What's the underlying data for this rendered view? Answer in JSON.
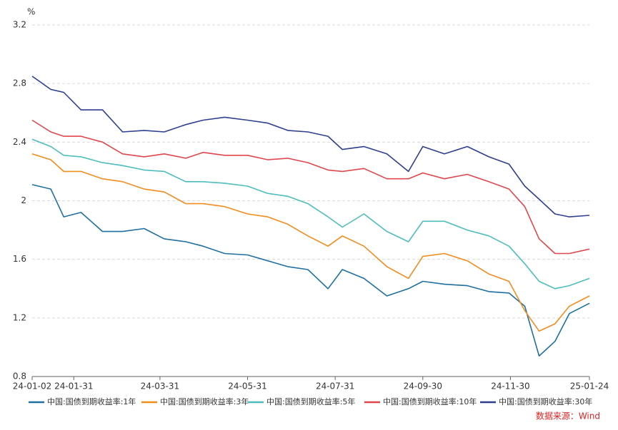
{
  "chart_data": {
    "type": "line",
    "y_unit": "%",
    "source": "数据来源：Wind",
    "x": [
      "24-01-02",
      "24-01-15",
      "24-01-24",
      "24-02-05",
      "24-02-20",
      "24-03-05",
      "24-03-20",
      "24-04-03",
      "24-04-18",
      "24-04-30",
      "24-05-15",
      "24-05-31",
      "24-06-14",
      "24-06-28",
      "24-07-12",
      "24-07-26",
      "24-08-05",
      "24-08-20",
      "24-09-05",
      "24-09-20",
      "24-09-30",
      "24-10-15",
      "24-10-31",
      "24-11-15",
      "24-11-29",
      "24-12-10",
      "24-12-20",
      "24-12-31",
      "25-01-10",
      "25-01-24"
    ],
    "series": [
      {
        "name": "中国:国债到期收益率:1年",
        "color": "#1f6fa0",
        "values": [
          2.11,
          2.08,
          1.89,
          1.92,
          1.79,
          1.79,
          1.81,
          1.74,
          1.72,
          1.69,
          1.64,
          1.63,
          1.59,
          1.55,
          1.53,
          1.4,
          1.53,
          1.47,
          1.35,
          1.4,
          1.45,
          1.43,
          1.42,
          1.38,
          1.37,
          1.28,
          0.94,
          1.04,
          1.23,
          1.3
        ]
      },
      {
        "name": "中国:国债到期收益率:3年",
        "color": "#f28c1e",
        "values": [
          2.32,
          2.28,
          2.2,
          2.2,
          2.15,
          2.13,
          2.08,
          2.06,
          1.98,
          1.98,
          1.96,
          1.91,
          1.89,
          1.84,
          1.76,
          1.69,
          1.76,
          1.69,
          1.55,
          1.47,
          1.62,
          1.64,
          1.59,
          1.5,
          1.45,
          1.25,
          1.11,
          1.16,
          1.28,
          1.35
        ]
      },
      {
        "name": "中国:国债到期收益率:5年",
        "color": "#4dbdbd",
        "values": [
          2.42,
          2.37,
          2.31,
          2.3,
          2.26,
          2.24,
          2.21,
          2.2,
          2.13,
          2.13,
          2.12,
          2.1,
          2.05,
          2.03,
          1.98,
          1.89,
          1.82,
          1.91,
          1.79,
          1.72,
          1.86,
          1.86,
          1.8,
          1.76,
          1.69,
          1.57,
          1.45,
          1.4,
          1.42,
          1.47
        ]
      },
      {
        "name": "中国:国债到期收益率:10年",
        "color": "#e0474c",
        "values": [
          2.55,
          2.47,
          2.44,
          2.44,
          2.4,
          2.32,
          2.3,
          2.32,
          2.29,
          2.33,
          2.31,
          2.31,
          2.28,
          2.29,
          2.26,
          2.21,
          2.2,
          2.22,
          2.15,
          2.15,
          2.19,
          2.15,
          2.18,
          2.13,
          2.08,
          1.96,
          1.74,
          1.64,
          1.64,
          1.67
        ]
      },
      {
        "name": "中国:国债到期收益率:30年",
        "color": "#2e3f8f",
        "values": [
          2.85,
          2.76,
          2.74,
          2.62,
          2.62,
          2.47,
          2.48,
          2.47,
          2.52,
          2.55,
          2.57,
          2.55,
          2.53,
          2.48,
          2.47,
          2.44,
          2.35,
          2.37,
          2.32,
          2.2,
          2.37,
          2.32,
          2.37,
          2.3,
          2.25,
          2.1,
          2.01,
          1.91,
          1.89,
          1.9
        ]
      }
    ],
    "xlim": [
      "24-01-02",
      "25-01-24"
    ],
    "xticks": [
      "24-01-02",
      "24-01-31",
      "24-03-31",
      "24-05-31",
      "24-07-31",
      "24-09-30",
      "24-11-30",
      "25-01-24"
    ],
    "ylim": [
      0.8,
      3.2
    ],
    "yticks": [
      0.8,
      1.2,
      1.6,
      2,
      2.4,
      2.8,
      3.2
    ],
    "grid": true,
    "legend": "bottom"
  }
}
